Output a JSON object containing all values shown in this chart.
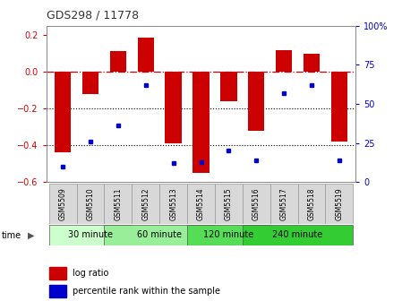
{
  "title": "GDS298 / 11778",
  "samples": [
    "GSM5509",
    "GSM5510",
    "GSM5511",
    "GSM5512",
    "GSM5513",
    "GSM5514",
    "GSM5515",
    "GSM5516",
    "GSM5517",
    "GSM5518",
    "GSM5519"
  ],
  "log_ratio": [
    -0.44,
    -0.12,
    0.11,
    0.185,
    -0.39,
    -0.55,
    -0.16,
    -0.32,
    0.115,
    0.095,
    -0.38
  ],
  "percentile": [
    10,
    26,
    36,
    62,
    12,
    13,
    20,
    14,
    57,
    62,
    14
  ],
  "ylim_left": [
    -0.6,
    0.25
  ],
  "ylim_right": [
    0,
    100
  ],
  "bar_color": "#cc0000",
  "dot_color": "#0000cc",
  "hline_color": "#cc0000",
  "groups": [
    {
      "label": "30 minute",
      "start": 0,
      "end": 2,
      "color": "#ccffcc"
    },
    {
      "label": "60 minute",
      "start": 2,
      "end": 5,
      "color": "#99ee99"
    },
    {
      "label": "120 minute",
      "start": 5,
      "end": 7,
      "color": "#55dd55"
    },
    {
      "label": "240 minute",
      "start": 7,
      "end": 10,
      "color": "#33cc33"
    }
  ],
  "bg_color": "#ffffff",
  "plot_bg": "#ffffff",
  "title_color": "#333333",
  "left_yticks": [
    -0.6,
    -0.4,
    -0.2,
    0,
    0.2
  ],
  "right_yticks": [
    0,
    25,
    50,
    75,
    100
  ],
  "bar_width": 0.6
}
